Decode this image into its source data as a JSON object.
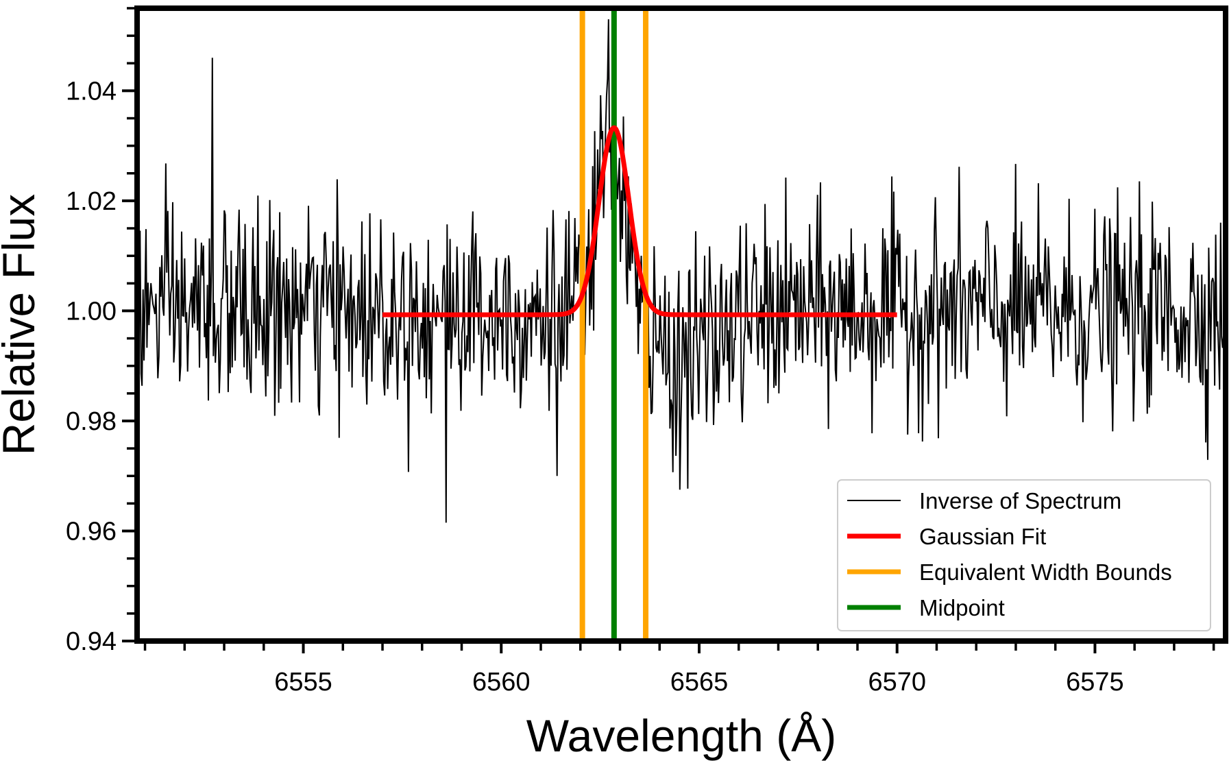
{
  "chart_data": {
    "type": "line",
    "title": "",
    "xlabel": "Wavelength (Å)",
    "ylabel": "Relative Flux",
    "xlim": [
      6550.8,
      6578.3
    ],
    "ylim": [
      0.94,
      1.055
    ],
    "xticks": [
      6555,
      6560,
      6565,
      6570,
      6575
    ],
    "xtick_labels": [
      "6555",
      "6560",
      "6565",
      "6570",
      "6575"
    ],
    "yticks": [
      0.94,
      0.96,
      0.98,
      1.0,
      1.02,
      1.04
    ],
    "ytick_labels": [
      "0.94",
      "0.96",
      "0.98",
      "1.00",
      "1.02",
      "1.04"
    ],
    "grid": false,
    "legend_position": "lower-right",
    "series": [
      {
        "name": "Inverse of Spectrum",
        "color": "#000000",
        "kind": "noisy-spectrum",
        "x_start": 6550.8,
        "x_end": 6578.3,
        "points": 1100,
        "baseline": 1.0,
        "noise_sigma": 0.009,
        "emission_peak": {
          "center": 6562.8,
          "amplitude": 0.035,
          "sigma": 0.35
        },
        "absorption_dip": {
          "center": 6564.5,
          "amplitude": -0.008,
          "sigma": 1.0
        },
        "notable_points": [
          {
            "x": 6552.7,
            "y": 1.046
          },
          {
            "x": 6558.6,
            "y": 0.9615
          },
          {
            "x": 6562.7,
            "y": 1.053
          },
          {
            "x": 6561.4,
            "y": 0.97
          },
          {
            "x": 6564.5,
            "y": 0.9675
          }
        ]
      },
      {
        "name": "Gaussian Fit",
        "color": "#ff0000",
        "kind": "gaussian",
        "x_start": 6557.0,
        "x_end": 6570.0,
        "baseline": 0.9993,
        "center": 6562.85,
        "amplitude": 0.034,
        "sigma": 0.38
      },
      {
        "name": "Equivalent Width Bounds",
        "color": "#ffa500",
        "kind": "vlines",
        "x": [
          6562.05,
          6563.65
        ]
      },
      {
        "name": "Midpoint",
        "color": "#008000",
        "kind": "vlines",
        "x": [
          6562.85
        ]
      }
    ],
    "legend_entries": [
      "Inverse of Spectrum",
      "Gaussian Fit",
      "Equivalent Width Bounds",
      "Midpoint"
    ]
  }
}
